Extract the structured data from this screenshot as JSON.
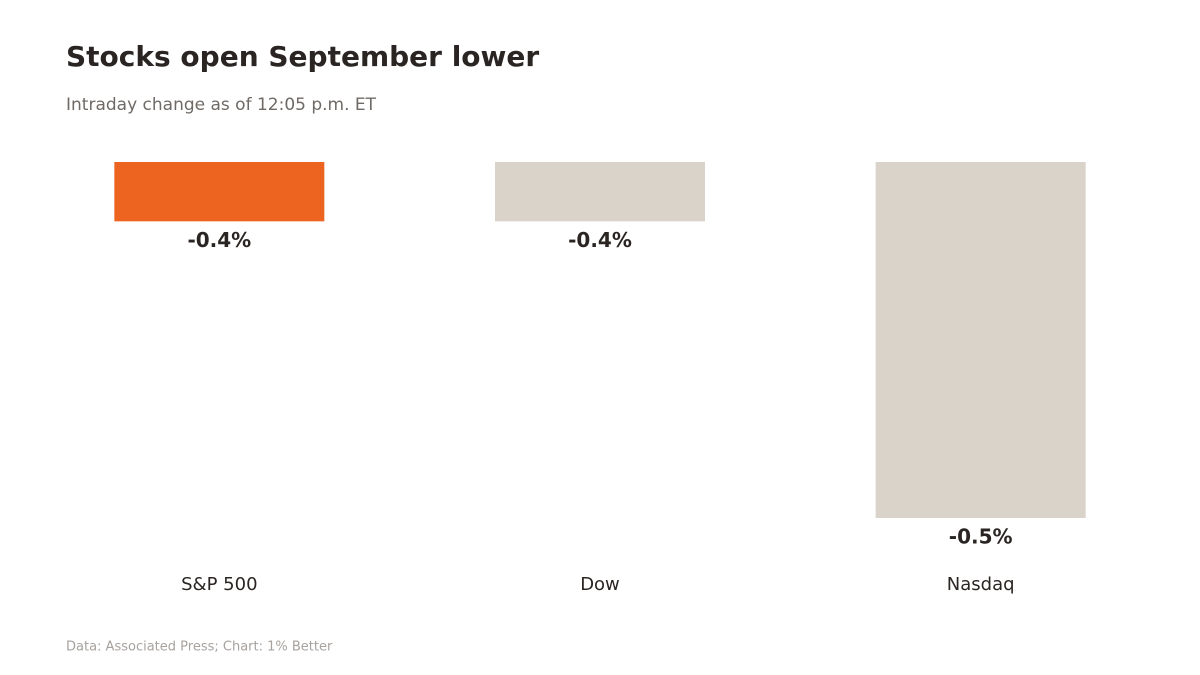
{
  "chart_data": {
    "type": "bar",
    "title": "Stocks open September lower",
    "subtitle": "Intraday change as of 12:05 p.m. ET",
    "source": "Data: Associated Press; Chart: 1% Better",
    "categories": [
      "S&P 500",
      "Dow",
      "Nasdaq"
    ],
    "values": [
      -0.4,
      -0.4,
      -0.5
    ],
    "value_labels": [
      "-0.4%",
      "-0.4%",
      "-0.5%"
    ],
    "colors": [
      "#ec6420",
      "#d9d3c9",
      "#d9d3c9"
    ],
    "ylim": [
      -0.5,
      -0.38
    ]
  }
}
